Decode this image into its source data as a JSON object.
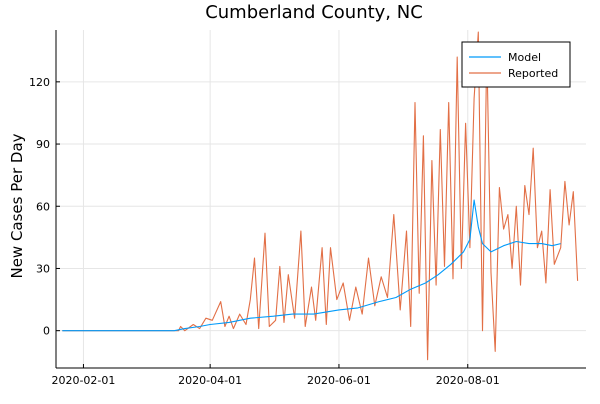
{
  "chart_data": {
    "type": "line",
    "title": "Cumberland County, NC",
    "xlabel": "",
    "ylabel": "New Cases Per Day",
    "x_range": [
      "2020-01-19",
      "2020-09-26"
    ],
    "ylim": [
      -18,
      145
    ],
    "x_ticks": [
      "2020-02-01",
      "2020-04-01",
      "2020-06-01",
      "2020-08-01"
    ],
    "y_ticks": [
      0,
      30,
      60,
      90,
      120
    ],
    "grid": true,
    "legend_position": "top-right",
    "series": [
      {
        "name": "Model",
        "color": "#009AFA",
        "points": [
          [
            "2020-01-22",
            0
          ],
          [
            "2020-03-15",
            0
          ],
          [
            "2020-03-20",
            1
          ],
          [
            "2020-03-27",
            2
          ],
          [
            "2020-04-01",
            3
          ],
          [
            "2020-04-10",
            4
          ],
          [
            "2020-04-20",
            6
          ],
          [
            "2020-05-01",
            7
          ],
          [
            "2020-05-10",
            8
          ],
          [
            "2020-05-20",
            8
          ],
          [
            "2020-06-01",
            10
          ],
          [
            "2020-06-10",
            11
          ],
          [
            "2020-06-20",
            14
          ],
          [
            "2020-06-28",
            16
          ],
          [
            "2020-07-05",
            20
          ],
          [
            "2020-07-12",
            23
          ],
          [
            "2020-07-18",
            27
          ],
          [
            "2020-07-24",
            32
          ],
          [
            "2020-07-30",
            38
          ],
          [
            "2020-08-02",
            44
          ],
          [
            "2020-08-04",
            63
          ],
          [
            "2020-08-06",
            50
          ],
          [
            "2020-08-08",
            42
          ],
          [
            "2020-08-12",
            38
          ],
          [
            "2020-08-18",
            41
          ],
          [
            "2020-08-24",
            43
          ],
          [
            "2020-08-30",
            42
          ],
          [
            "2020-09-05",
            42
          ],
          [
            "2020-09-10",
            41
          ],
          [
            "2020-09-14",
            42
          ]
        ]
      },
      {
        "name": "Reported",
        "color": "#E26F46",
        "points": [
          [
            "2020-01-22",
            0
          ],
          [
            "2020-03-17",
            0
          ],
          [
            "2020-03-18",
            2
          ],
          [
            "2020-03-20",
            0
          ],
          [
            "2020-03-24",
            3
          ],
          [
            "2020-03-27",
            1
          ],
          [
            "2020-03-30",
            6
          ],
          [
            "2020-04-02",
            5
          ],
          [
            "2020-04-06",
            14
          ],
          [
            "2020-04-08",
            2
          ],
          [
            "2020-04-10",
            7
          ],
          [
            "2020-04-12",
            1
          ],
          [
            "2020-04-15",
            8
          ],
          [
            "2020-04-18",
            3
          ],
          [
            "2020-04-20",
            15
          ],
          [
            "2020-04-22",
            35
          ],
          [
            "2020-04-24",
            1
          ],
          [
            "2020-04-27",
            47
          ],
          [
            "2020-04-29",
            2
          ],
          [
            "2020-05-02",
            5
          ],
          [
            "2020-05-04",
            31
          ],
          [
            "2020-05-06",
            4
          ],
          [
            "2020-05-08",
            27
          ],
          [
            "2020-05-11",
            6
          ],
          [
            "2020-05-14",
            48
          ],
          [
            "2020-05-16",
            2
          ],
          [
            "2020-05-19",
            21
          ],
          [
            "2020-05-21",
            5
          ],
          [
            "2020-05-24",
            40
          ],
          [
            "2020-05-26",
            3
          ],
          [
            "2020-05-28",
            40
          ],
          [
            "2020-05-31",
            15
          ],
          [
            "2020-06-03",
            23
          ],
          [
            "2020-06-06",
            5
          ],
          [
            "2020-06-09",
            21
          ],
          [
            "2020-06-12",
            8
          ],
          [
            "2020-06-15",
            35
          ],
          [
            "2020-06-18",
            12
          ],
          [
            "2020-06-21",
            26
          ],
          [
            "2020-06-24",
            16
          ],
          [
            "2020-06-27",
            56
          ],
          [
            "2020-06-30",
            10
          ],
          [
            "2020-07-03",
            48
          ],
          [
            "2020-07-05",
            2
          ],
          [
            "2020-07-07",
            110
          ],
          [
            "2020-07-09",
            18
          ],
          [
            "2020-07-11",
            94
          ],
          [
            "2020-07-13",
            -14
          ],
          [
            "2020-07-15",
            82
          ],
          [
            "2020-07-17",
            22
          ],
          [
            "2020-07-19",
            97
          ],
          [
            "2020-07-21",
            31
          ],
          [
            "2020-07-23",
            110
          ],
          [
            "2020-07-25",
            25
          ],
          [
            "2020-07-27",
            132
          ],
          [
            "2020-07-29",
            30
          ],
          [
            "2020-07-31",
            100
          ],
          [
            "2020-08-02",
            40
          ],
          [
            "2020-08-04",
            112
          ],
          [
            "2020-08-06",
            144
          ],
          [
            "2020-08-08",
            0
          ],
          [
            "2020-08-10",
            136
          ],
          [
            "2020-08-12",
            28
          ],
          [
            "2020-08-14",
            -10
          ],
          [
            "2020-08-16",
            69
          ],
          [
            "2020-08-18",
            49
          ],
          [
            "2020-08-20",
            56
          ],
          [
            "2020-08-22",
            30
          ],
          [
            "2020-08-24",
            60
          ],
          [
            "2020-08-26",
            22
          ],
          [
            "2020-08-28",
            70
          ],
          [
            "2020-08-30",
            56
          ],
          [
            "2020-09-01",
            88
          ],
          [
            "2020-09-03",
            40
          ],
          [
            "2020-09-05",
            48
          ],
          [
            "2020-09-07",
            23
          ],
          [
            "2020-09-09",
            68
          ],
          [
            "2020-09-11",
            32
          ],
          [
            "2020-09-14",
            40
          ],
          [
            "2020-09-16",
            72
          ],
          [
            "2020-09-18",
            51
          ],
          [
            "2020-09-20",
            67
          ],
          [
            "2020-09-22",
            24
          ]
        ]
      }
    ]
  }
}
